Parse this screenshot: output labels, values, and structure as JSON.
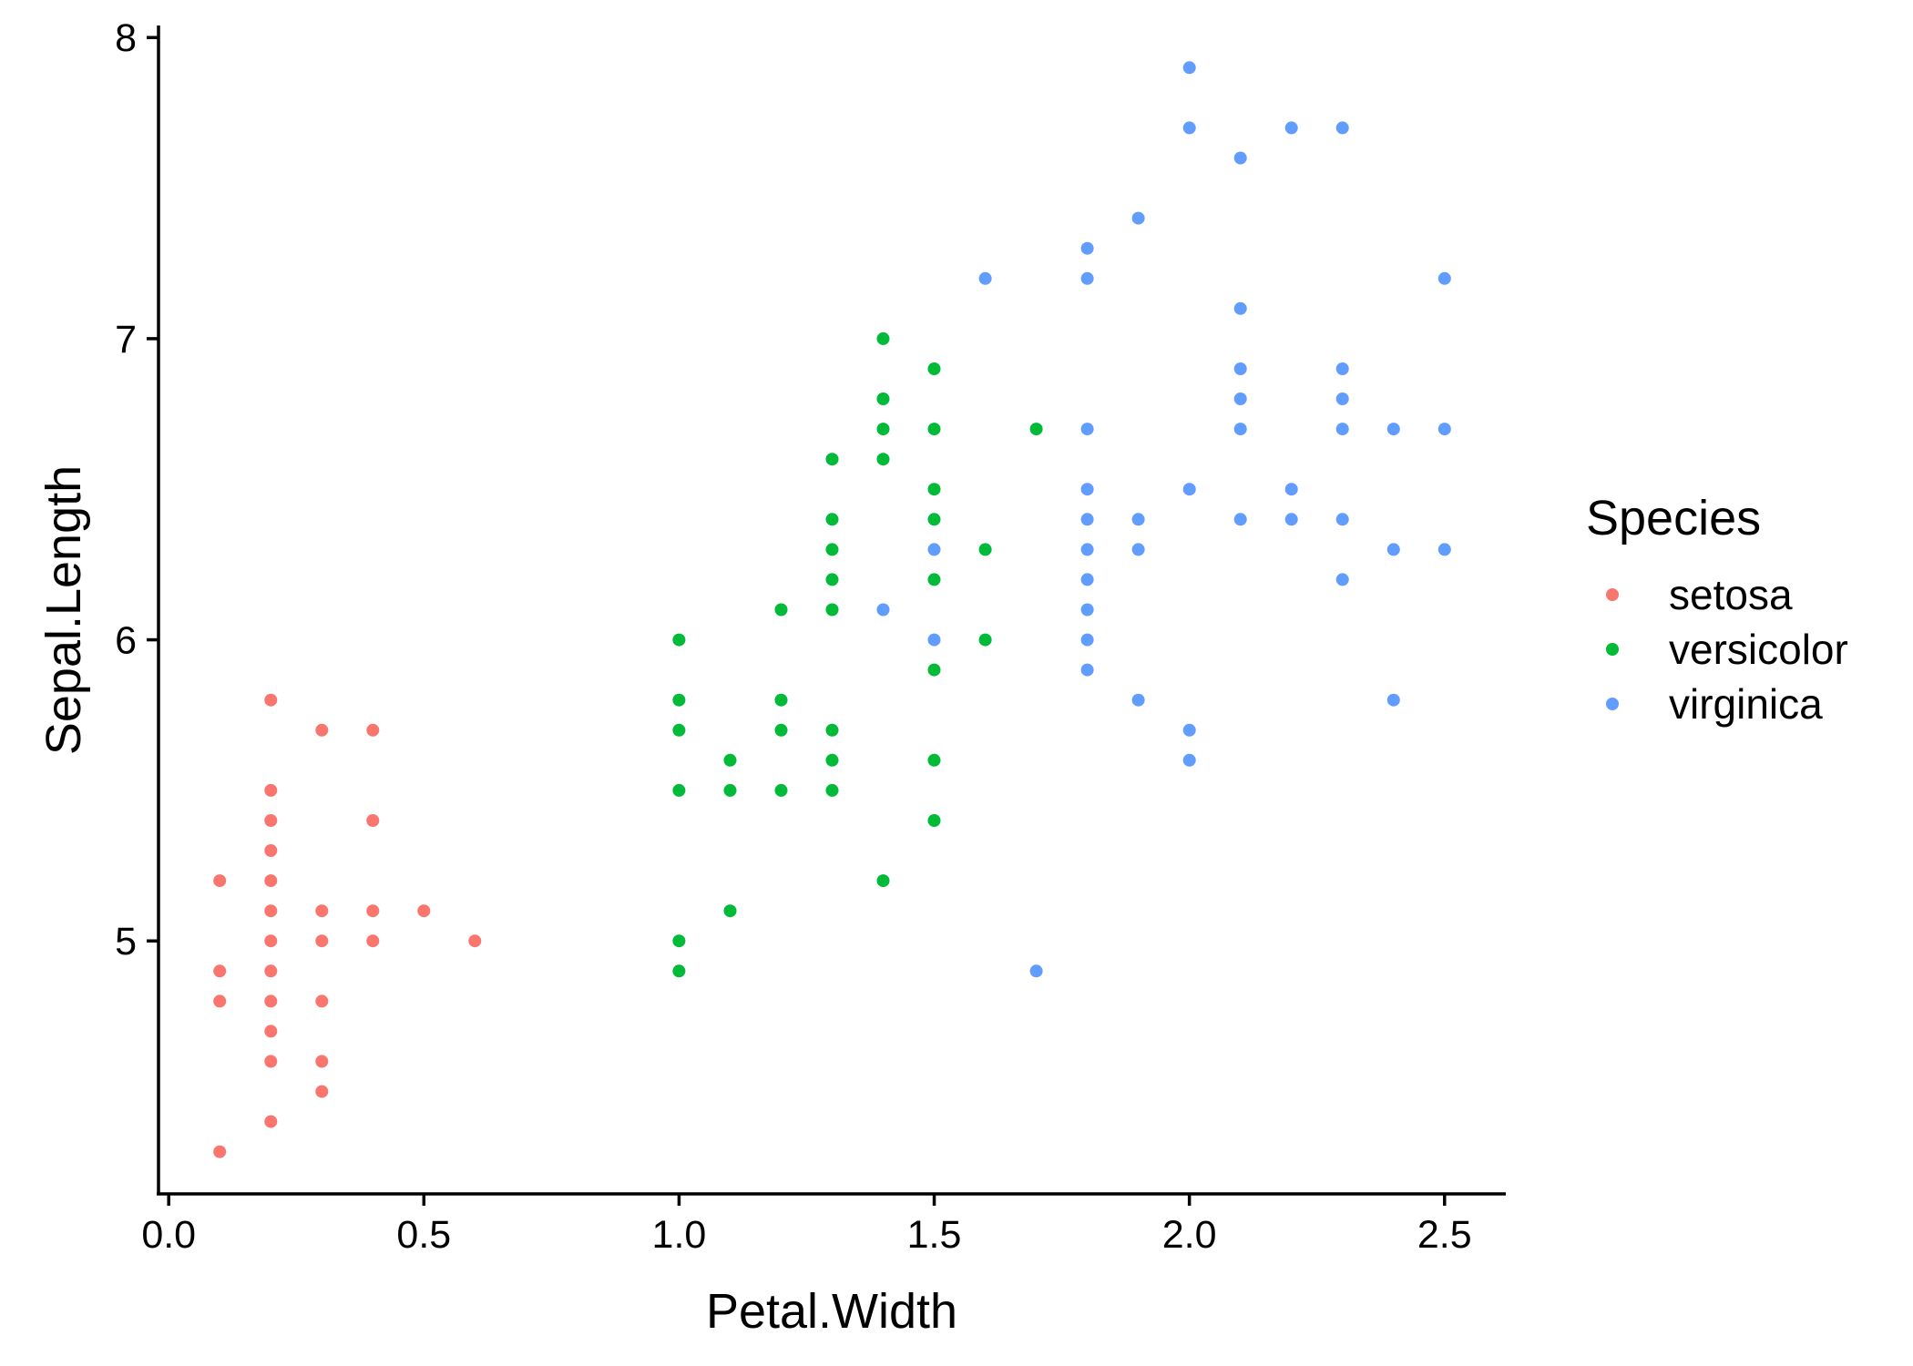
{
  "chart_data": {
    "type": "scatter",
    "title": "",
    "xlabel": "Petal.Width",
    "ylabel": "Sepal.Length",
    "xlim": [
      -0.02,
      2.62
    ],
    "ylim": [
      4.16,
      8.04
    ],
    "x_ticks": [
      0.0,
      0.5,
      1.0,
      1.5,
      2.0,
      2.5
    ],
    "x_tick_labels": [
      "0.0",
      "0.5",
      "1.0",
      "1.5",
      "2.0",
      "2.5"
    ],
    "y_ticks": [
      5,
      6,
      7,
      8
    ],
    "y_tick_labels": [
      "5",
      "6",
      "7",
      "8"
    ],
    "grid": false,
    "legend": {
      "title": "Species",
      "placement": "right"
    },
    "series": [
      {
        "name": "setosa",
        "color": "#F8766D",
        "points": [
          [
            0.1,
            5.2
          ],
          [
            0.1,
            4.9
          ],
          [
            0.1,
            4.8
          ],
          [
            0.1,
            4.3
          ],
          [
            0.2,
            5.8
          ],
          [
            0.2,
            5.5
          ],
          [
            0.2,
            5.4
          ],
          [
            0.2,
            5.3
          ],
          [
            0.2,
            5.2
          ],
          [
            0.2,
            5.1
          ],
          [
            0.2,
            5.0
          ],
          [
            0.2,
            4.9
          ],
          [
            0.2,
            4.8
          ],
          [
            0.2,
            4.7
          ],
          [
            0.2,
            4.6
          ],
          [
            0.2,
            4.4
          ],
          [
            0.3,
            5.7
          ],
          [
            0.3,
            5.1
          ],
          [
            0.3,
            5.0
          ],
          [
            0.3,
            4.8
          ],
          [
            0.3,
            4.6
          ],
          [
            0.3,
            4.5
          ],
          [
            0.4,
            5.7
          ],
          [
            0.4,
            5.4
          ],
          [
            0.4,
            5.1
          ],
          [
            0.4,
            5.0
          ],
          [
            0.5,
            5.1
          ],
          [
            0.6,
            5.0
          ]
        ]
      },
      {
        "name": "versicolor",
        "color": "#00BA38",
        "points": [
          [
            1.0,
            6.0
          ],
          [
            1.0,
            5.8
          ],
          [
            1.0,
            5.7
          ],
          [
            1.0,
            5.5
          ],
          [
            1.0,
            5.0
          ],
          [
            1.0,
            4.9
          ],
          [
            1.1,
            5.6
          ],
          [
            1.1,
            5.5
          ],
          [
            1.1,
            5.1
          ],
          [
            1.2,
            6.1
          ],
          [
            1.2,
            5.8
          ],
          [
            1.2,
            5.7
          ],
          [
            1.2,
            5.5
          ],
          [
            1.3,
            6.6
          ],
          [
            1.3,
            6.4
          ],
          [
            1.3,
            6.3
          ],
          [
            1.3,
            6.2
          ],
          [
            1.3,
            6.1
          ],
          [
            1.3,
            5.7
          ],
          [
            1.3,
            5.6
          ],
          [
            1.3,
            5.5
          ],
          [
            1.4,
            7.0
          ],
          [
            1.4,
            6.8
          ],
          [
            1.4,
            6.7
          ],
          [
            1.4,
            6.6
          ],
          [
            1.4,
            5.2
          ],
          [
            1.5,
            6.9
          ],
          [
            1.5,
            6.7
          ],
          [
            1.5,
            6.5
          ],
          [
            1.5,
            6.4
          ],
          [
            1.5,
            6.2
          ],
          [
            1.5,
            5.9
          ],
          [
            1.5,
            5.6
          ],
          [
            1.5,
            5.4
          ],
          [
            1.6,
            6.3
          ],
          [
            1.6,
            6.0
          ],
          [
            1.7,
            6.7
          ]
        ]
      },
      {
        "name": "virginica",
        "color": "#619CFF",
        "points": [
          [
            1.4,
            6.1
          ],
          [
            1.5,
            6.3
          ],
          [
            1.5,
            6.0
          ],
          [
            1.6,
            7.2
          ],
          [
            1.7,
            4.9
          ],
          [
            1.8,
            7.3
          ],
          [
            1.8,
            7.2
          ],
          [
            1.8,
            6.7
          ],
          [
            1.8,
            6.5
          ],
          [
            1.8,
            6.4
          ],
          [
            1.8,
            6.3
          ],
          [
            1.8,
            6.2
          ],
          [
            1.8,
            6.1
          ],
          [
            1.8,
            6.0
          ],
          [
            1.8,
            5.9
          ],
          [
            1.9,
            7.4
          ],
          [
            1.9,
            6.4
          ],
          [
            1.9,
            6.3
          ],
          [
            1.9,
            5.8
          ],
          [
            2.0,
            7.9
          ],
          [
            2.0,
            7.7
          ],
          [
            2.0,
            6.5
          ],
          [
            2.0,
            5.7
          ],
          [
            2.0,
            5.6
          ],
          [
            2.1,
            7.6
          ],
          [
            2.1,
            7.1
          ],
          [
            2.1,
            6.9
          ],
          [
            2.1,
            6.8
          ],
          [
            2.1,
            6.7
          ],
          [
            2.1,
            6.4
          ],
          [
            2.2,
            7.7
          ],
          [
            2.2,
            6.5
          ],
          [
            2.2,
            6.4
          ],
          [
            2.3,
            7.7
          ],
          [
            2.3,
            6.9
          ],
          [
            2.3,
            6.8
          ],
          [
            2.3,
            6.7
          ],
          [
            2.3,
            6.4
          ],
          [
            2.3,
            6.2
          ],
          [
            2.4,
            6.7
          ],
          [
            2.4,
            6.3
          ],
          [
            2.4,
            5.8
          ],
          [
            2.5,
            7.2
          ],
          [
            2.5,
            6.7
          ],
          [
            2.5,
            6.3
          ]
        ]
      }
    ]
  }
}
